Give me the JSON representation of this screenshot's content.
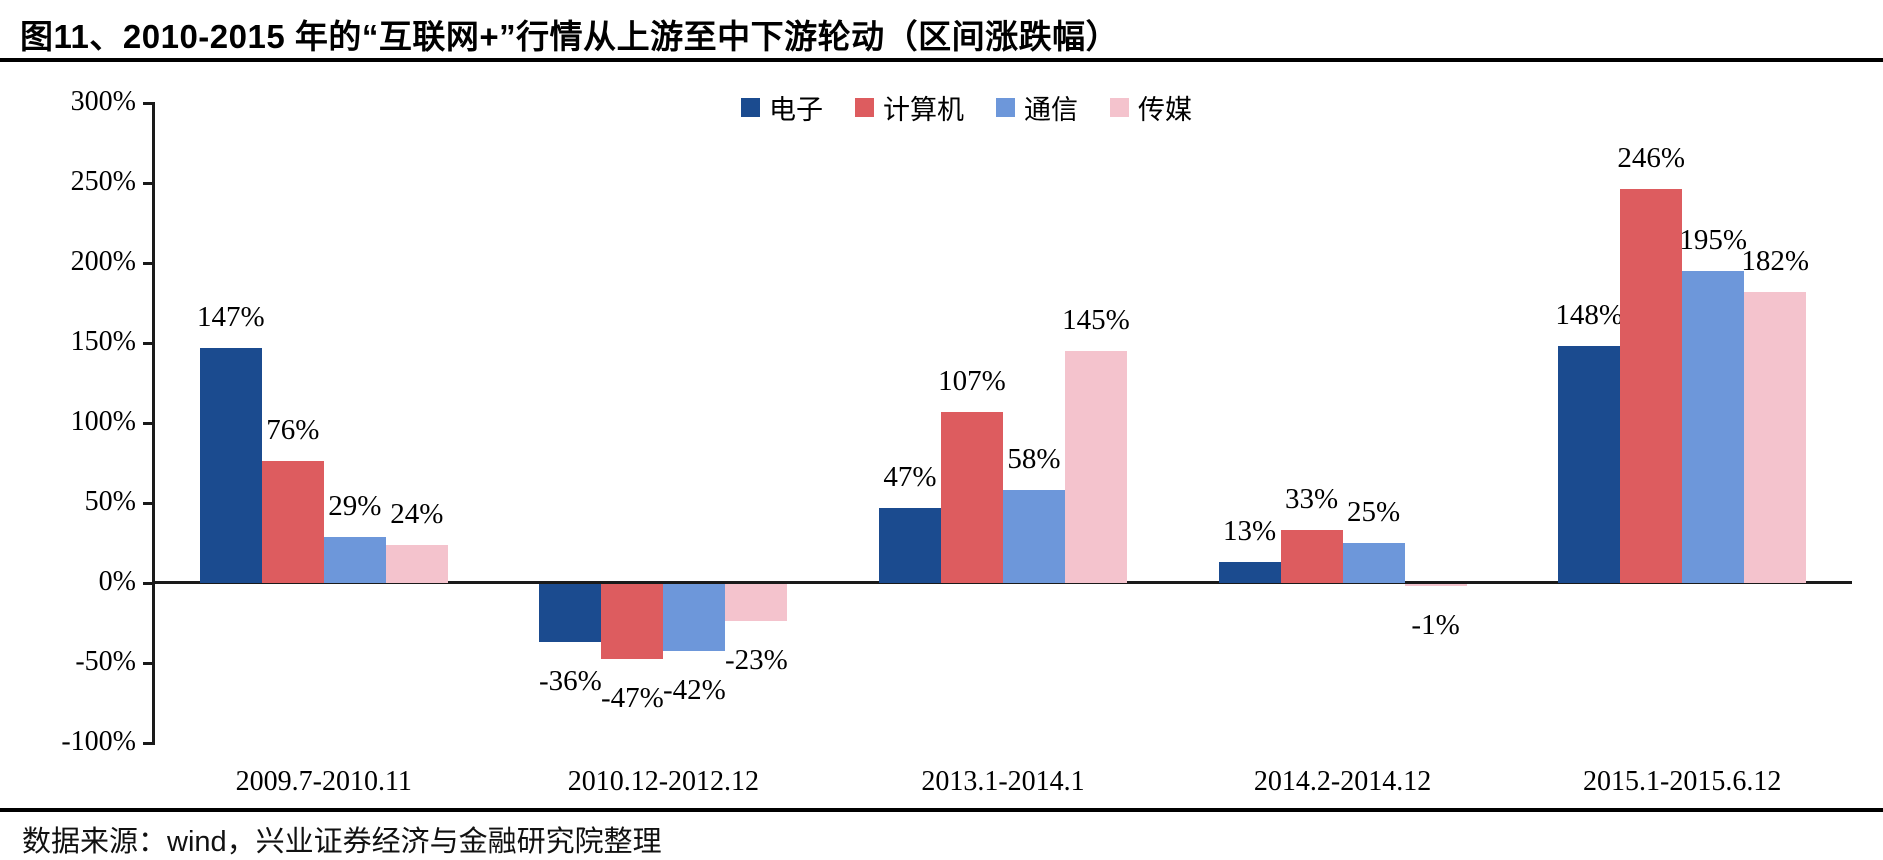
{
  "title": "图11、2010-2015 年的“互联网+”行情从上游至中下游轮动（区间涨跌幅）",
  "source_note": "数据来源：wind，兴业证券经济与金融研究院整理",
  "chart_data": {
    "type": "bar",
    "title": "图11、2010-2015 年的“互联网+”行情从上游至中下游轮动（区间涨跌幅）",
    "categories": [
      "2009.7-2010.11",
      "2010.12-2012.12",
      "2013.1-2014.1",
      "2014.2-2014.12",
      "2015.1-2015.6.12"
    ],
    "series": [
      {
        "name": "电子",
        "color": "#1B4B8F",
        "values": [
          147,
          -36,
          47,
          13,
          148
        ]
      },
      {
        "name": "计算机",
        "color": "#DD5C5F",
        "values": [
          76,
          -47,
          107,
          33,
          246
        ]
      },
      {
        "name": "通信",
        "color": "#6D97DA",
        "values": [
          29,
          -42,
          58,
          25,
          195
        ]
      },
      {
        "name": "传媒",
        "color": "#F4C3CD",
        "values": [
          24,
          -23,
          145,
          -1,
          182
        ]
      }
    ],
    "value_label_format": "percent",
    "ylim": [
      -100,
      300
    ],
    "ytick_step": 50,
    "yticklabels": [
      "300%",
      "250%",
      "200%",
      "150%",
      "100%",
      "50%",
      "0%",
      "-50%",
      "-100%"
    ],
    "grid": false,
    "legend_position": "top-center",
    "axis_color": "#1a1a1a"
  }
}
